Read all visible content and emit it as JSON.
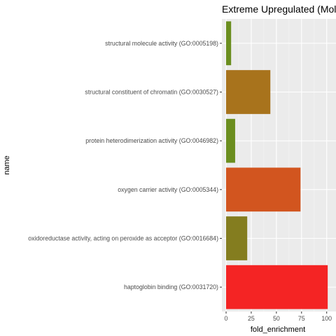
{
  "chart_data": {
    "type": "bar",
    "orientation": "horizontal",
    "title": "Extreme Upregulated (Molec",
    "xlabel": "fold_enrichment",
    "ylabel": "name",
    "xlim": [
      0,
      104
    ],
    "xticks": [
      0,
      25,
      50,
      75,
      100
    ],
    "grid": true,
    "legend": "none",
    "categories": [
      "structural molecule activity (GO:0005198)",
      "structural constituent of chromatin (GO:0030527)",
      "protein heterodimerization activity (GO:0046982)",
      "oxygen carrier activity (GO:0005344)",
      "oxidoreductase activity, acting on peroxide as acceptor (GO:0016684)",
      "haptoglobin binding (GO:0031720)"
    ],
    "values": [
      5,
      44,
      9,
      74,
      21,
      101
    ],
    "colors": [
      "#6b8e1f",
      "#a8731c",
      "#6b8e1f",
      "#d2551f",
      "#847d1f",
      "#f42424"
    ]
  },
  "style": {
    "panel_bg": "#ebebeb",
    "grid_major": "#ffffff",
    "text_color": "#4d4d4d",
    "title_color": "#000000"
  }
}
